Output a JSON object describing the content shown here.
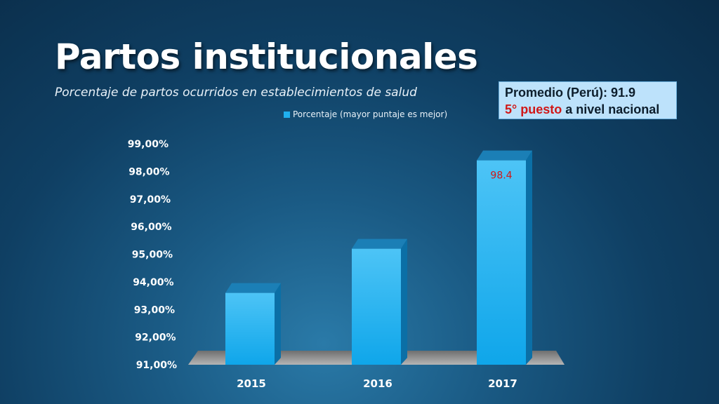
{
  "title": "Partos institucionales",
  "subtitle": "Porcentaje de partos ocurridos en establecimientos de salud",
  "infobox": {
    "line1": "Promedio (Perú): 91.9",
    "rank": "5° puesto",
    "rank_suffix": " a nivel nacional"
  },
  "colors": {
    "bar": "#1fb0ef",
    "label": "#d01818",
    "infobox_bg": "#bde2fb"
  },
  "chart_data": {
    "type": "bar",
    "categories": [
      "2015",
      "2016",
      "2017"
    ],
    "series": [
      {
        "name": "Porcentaje (mayor puntaje es mejor)",
        "values": [
          93.6,
          95.2,
          98.4
        ]
      }
    ],
    "data_labels": [
      "",
      "",
      "98.4"
    ],
    "yticks": [
      "91,00%",
      "92,00%",
      "93,00%",
      "94,00%",
      "95,00%",
      "96,00%",
      "97,00%",
      "98,00%",
      "99,00%"
    ],
    "ylim": [
      91,
      99
    ],
    "legend_position": "top",
    "grid": false
  }
}
